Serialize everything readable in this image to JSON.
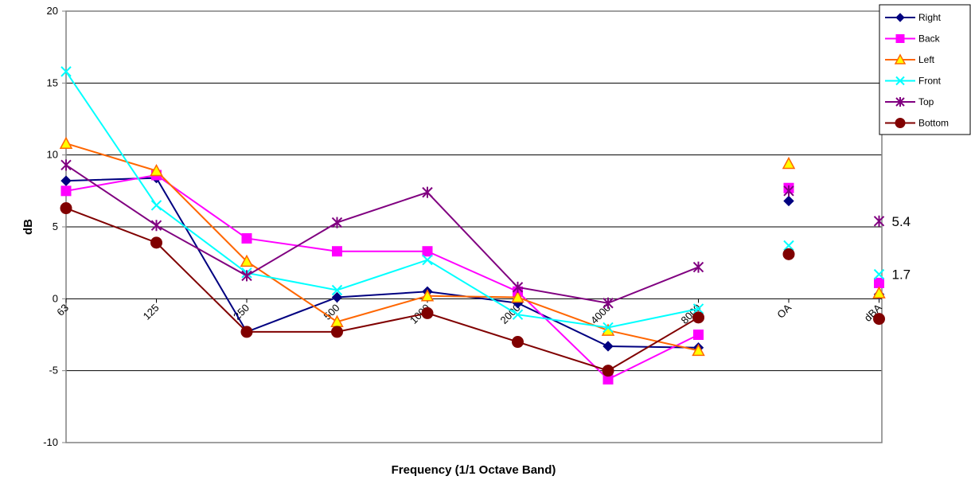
{
  "chart_data": {
    "type": "line",
    "title": "",
    "xlabel": "Frequency (1/1 Octave Band)",
    "ylabel": "dB",
    "ylim": [
      -10,
      20
    ],
    "yticks": [
      "-10",
      "-5",
      "0",
      "5",
      "10",
      "15",
      "20"
    ],
    "grid": "horizontal",
    "legend_position": "top-right",
    "categories": [
      "63",
      "125",
      "250",
      "500",
      "1000",
      "2000",
      "4000",
      "8000",
      "OA",
      "dBA"
    ],
    "connected_points": 8,
    "series": [
      {
        "name": "Right",
        "color": "#000080",
        "marker": "diamond",
        "values": [
          8.2,
          8.4,
          -2.3,
          0.1,
          0.5,
          -0.3,
          -3.3,
          -3.4,
          6.8,
          0.3
        ]
      },
      {
        "name": "Back",
        "color": "#FF00FF",
        "marker": "square",
        "values": [
          7.5,
          8.6,
          4.2,
          3.3,
          3.3,
          0.5,
          -5.6,
          -2.5,
          7.7,
          1.1
        ]
      },
      {
        "name": "Left",
        "color": "#FF6600",
        "marker": "triangle",
        "values": [
          10.8,
          8.9,
          2.6,
          -1.6,
          0.2,
          0.1,
          -2.2,
          -3.6,
          9.4,
          0.4
        ]
      },
      {
        "name": "Front",
        "color": "#00FFFF",
        "marker": "x",
        "values": [
          15.8,
          6.5,
          1.8,
          0.6,
          2.7,
          -1.1,
          -2.0,
          -0.7,
          3.7,
          1.7
        ]
      },
      {
        "name": "Top",
        "color": "#800080",
        "marker": "star",
        "values": [
          9.3,
          5.1,
          1.6,
          5.3,
          7.4,
          0.8,
          -0.3,
          2.2,
          7.5,
          5.4
        ]
      },
      {
        "name": "Bottom",
        "color": "#800000",
        "marker": "circle",
        "values": [
          6.3,
          3.9,
          -2.3,
          -2.3,
          -1.0,
          -3.0,
          -5.0,
          -1.3,
          3.1,
          -1.4
        ]
      }
    ],
    "annotations": [
      {
        "text": "5.4",
        "category": "dBA",
        "value": 5.4
      },
      {
        "text": "1.7",
        "category": "dBA",
        "value": 1.7
      }
    ]
  }
}
